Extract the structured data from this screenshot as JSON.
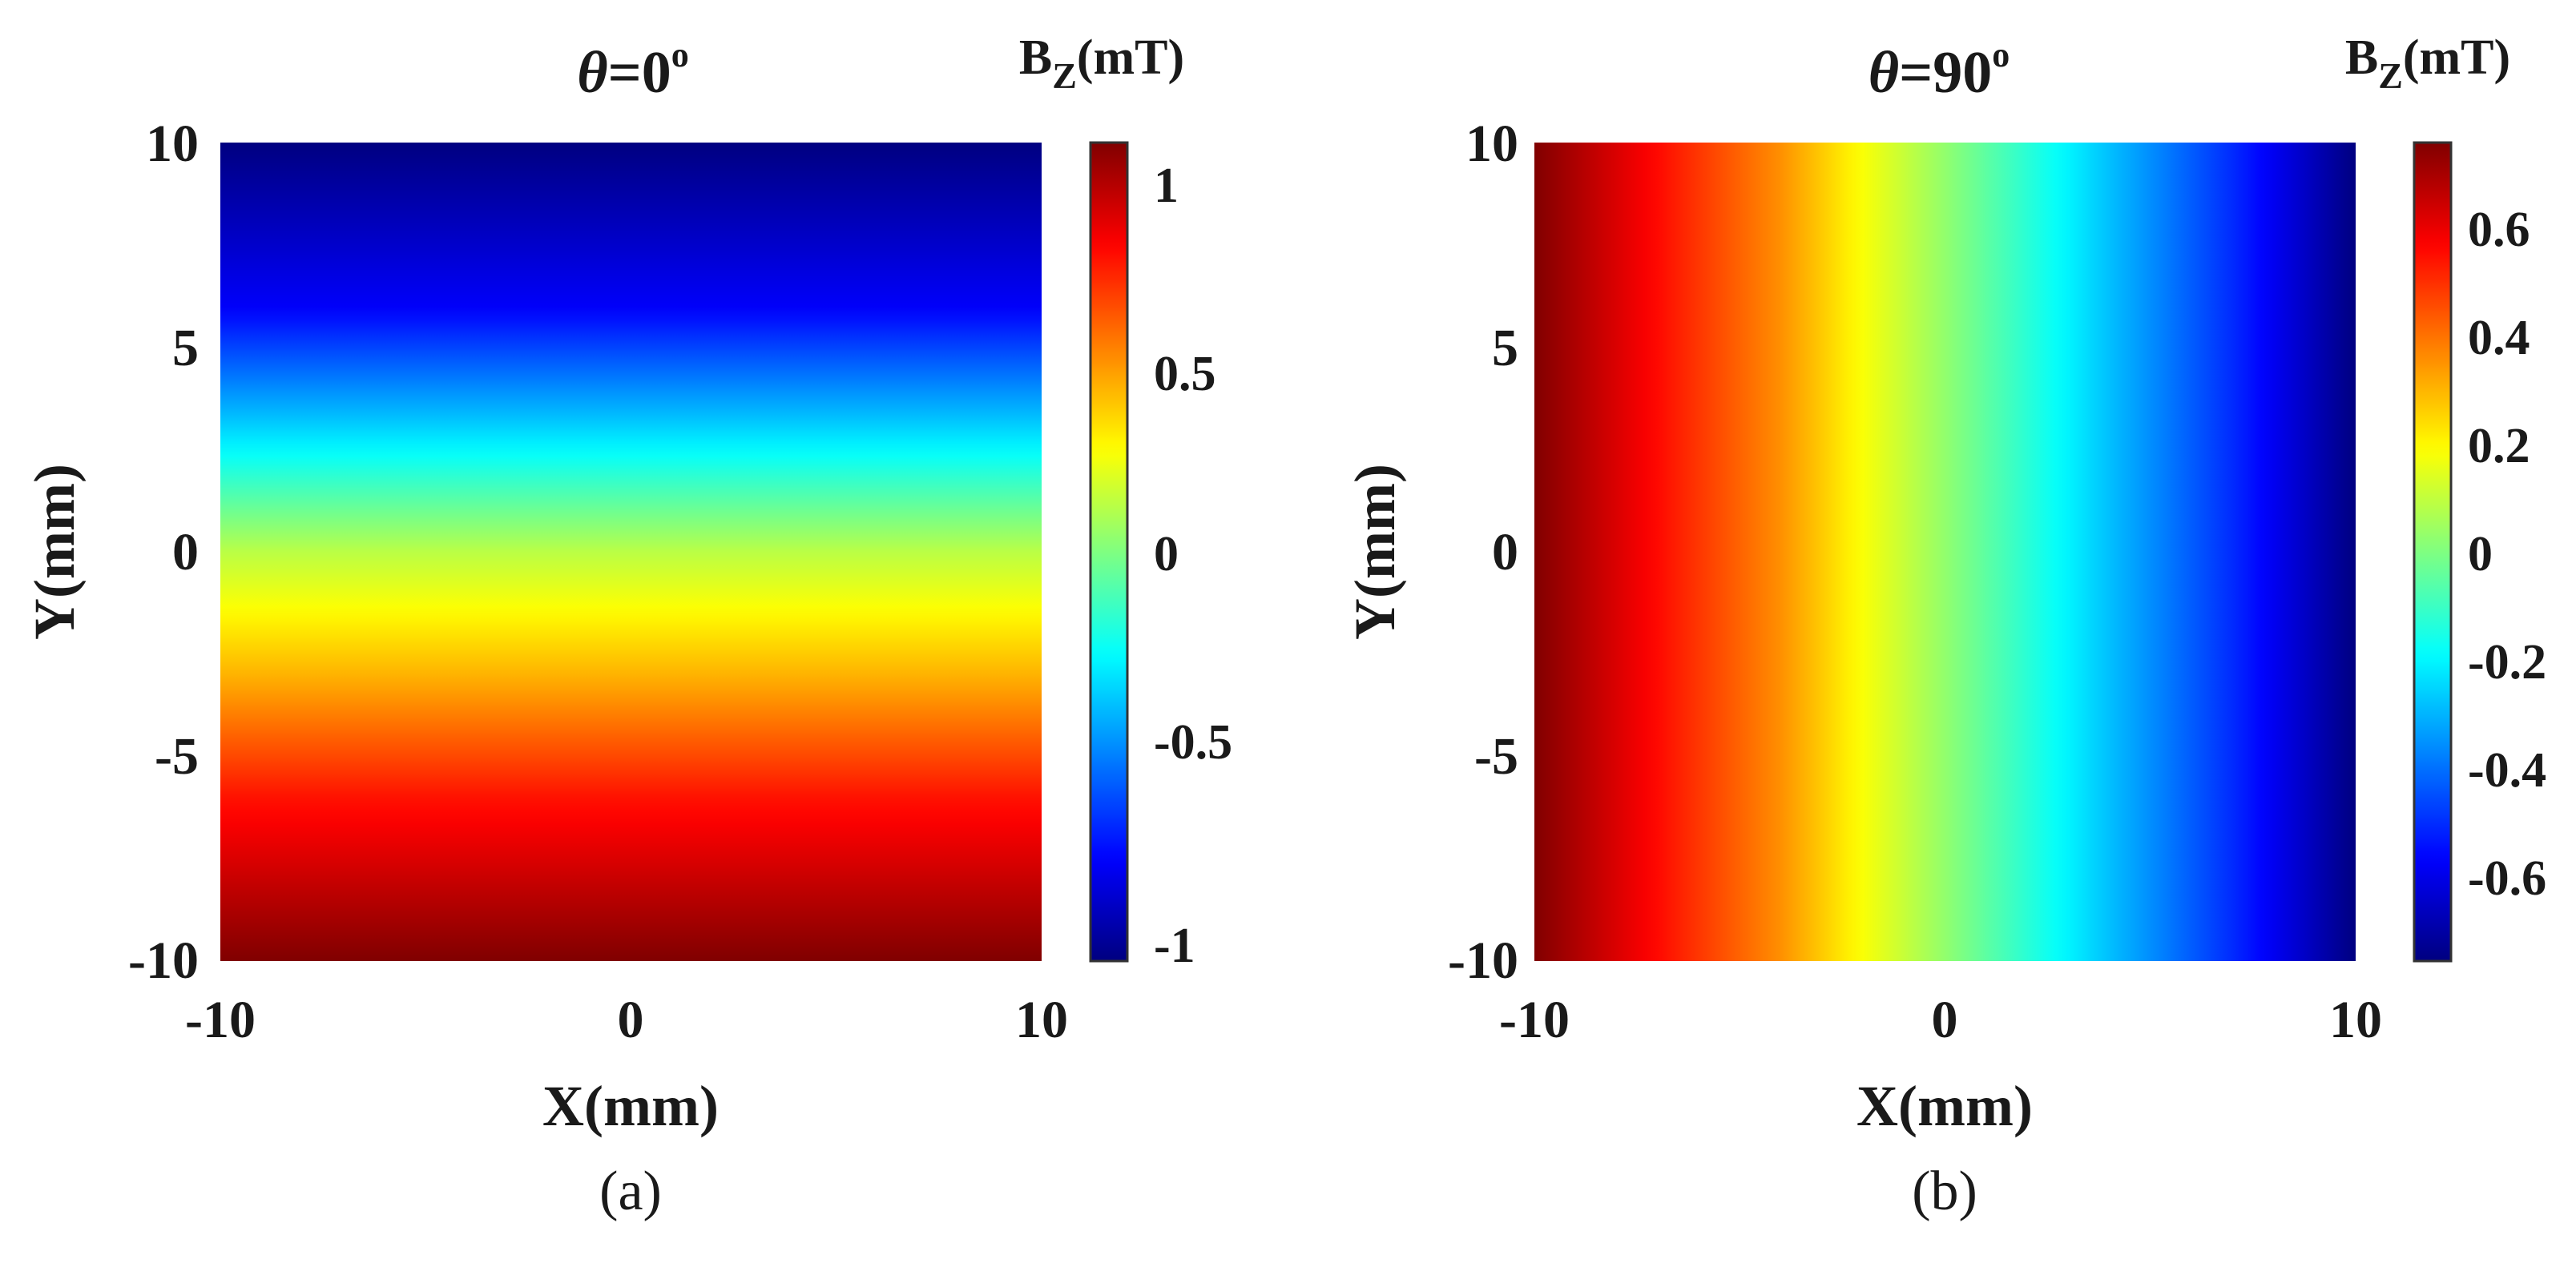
{
  "chart_data": [
    {
      "type": "heatmap",
      "panel": "(a)",
      "title": "θ=0°",
      "title_parts": {
        "symbol": "θ",
        "equals": "=0",
        "degree": "o"
      },
      "xlabel": "X(mm)",
      "ylabel": "Y(mm)",
      "xlim": [
        -10,
        10
      ],
      "ylim": [
        -10,
        10
      ],
      "x_ticks": [
        "-10",
        "0",
        "10"
      ],
      "x_tick_values": [
        -10,
        0,
        10
      ],
      "y_ticks": [
        "10",
        "5",
        "0",
        "-5",
        "-10"
      ],
      "y_tick_values": [
        10,
        5,
        0,
        -5,
        -10
      ],
      "field": "Bz varies with Y only; ≈ -1.05 mT at Y=10, ≈ 0.15 mT at Y=0, ≈ 1.05 mT at Y=-10",
      "gradient_direction": "vertical",
      "gradient_stops": [
        {
          "coord": 10,
          "value": -1.05
        },
        {
          "coord": 6,
          "value": -0.8
        },
        {
          "coord": 3,
          "value": -0.35
        },
        {
          "coord": 0,
          "value": 0.12
        },
        {
          "coord": -3,
          "value": 0.42
        },
        {
          "coord": -6,
          "value": 0.75
        },
        {
          "coord": -10,
          "value": 1.05
        }
      ],
      "colorbar": {
        "label_main": "B",
        "label_sub": "Z",
        "label_unit": "(mT)",
        "colormap": "jet",
        "range": [
          -1.05,
          1.05
        ],
        "ticks": [
          "1",
          "0.5",
          "0",
          "-0.5",
          "-1"
        ],
        "tick_values": [
          1,
          0.5,
          0,
          -0.5,
          -1
        ]
      },
      "caption": "(a)"
    },
    {
      "type": "heatmap",
      "panel": "(b)",
      "title": "θ=90°",
      "title_parts": {
        "symbol": "θ",
        "equals": "=90",
        "degree": "o"
      },
      "xlabel": "X(mm)",
      "ylabel": "Y(mm)",
      "xlim": [
        -10,
        10
      ],
      "ylim": [
        -10,
        10
      ],
      "x_ticks": [
        "-10",
        "0",
        "10"
      ],
      "x_tick_values": [
        -10,
        0,
        10
      ],
      "y_ticks": [
        "10",
        "5",
        "0",
        "-5",
        "-10"
      ],
      "y_tick_values": [
        10,
        5,
        0,
        -5,
        -10
      ],
      "field": "Bz varies mainly with X; ≈ 0.75 mT at X=-10, ≈ 0.2 mT near X=-2, ≈ -0.75 mT at X=10",
      "gradient_direction": "horizontal",
      "gradient_stops": [
        {
          "coord": -10,
          "value": 0.75
        },
        {
          "coord": -7,
          "value": 0.55
        },
        {
          "coord": -4,
          "value": 0.35
        },
        {
          "coord": -2,
          "value": 0.18
        },
        {
          "coord": 1,
          "value": -0.05
        },
        {
          "coord": 4,
          "value": -0.28
        },
        {
          "coord": 7,
          "value": -0.5
        },
        {
          "coord": 10,
          "value": -0.75
        }
      ],
      "colorbar": {
        "label_main": "B",
        "label_sub": "Z",
        "label_unit": "(mT)",
        "colormap": "jet",
        "range": [
          -0.75,
          0.75
        ],
        "ticks": [
          "0.6",
          "0.4",
          "0.2",
          "0",
          "-0.2",
          "-0.4",
          "-0.6"
        ],
        "tick_values": [
          0.6,
          0.4,
          0.2,
          0,
          -0.2,
          -0.4,
          -0.6
        ]
      },
      "caption": "(b)"
    }
  ]
}
